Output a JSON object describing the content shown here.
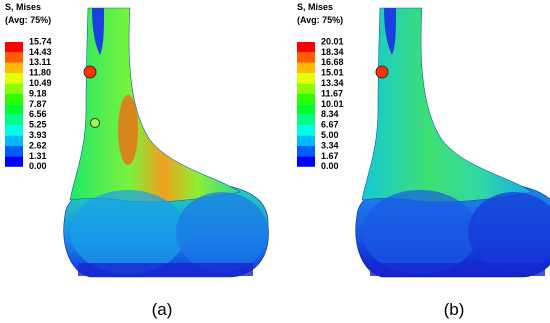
{
  "panels": [
    {
      "legend": {
        "title": "S, Mises",
        "subtitle": "(Avg: 75%)",
        "labels": [
          "15.74",
          "14.43",
          "13.11",
          "11.80",
          "10.49",
          "9.18",
          "7.87",
          "6.56",
          "5.25",
          "3.93",
          "2.62",
          "1.31",
          "0.00"
        ]
      },
      "caption": "(a)"
    },
    {
      "legend": {
        "title": "S, Mises",
        "subtitle": "(Avg: 75%)",
        "labels": [
          "20.01",
          "18.34",
          "16.68",
          "15.01",
          "13.34",
          "11.67",
          "10.01",
          "8.34",
          "6.67",
          "5.00",
          "3.34",
          "1.67",
          "0.00"
        ]
      },
      "caption": "(b)"
    }
  ]
}
